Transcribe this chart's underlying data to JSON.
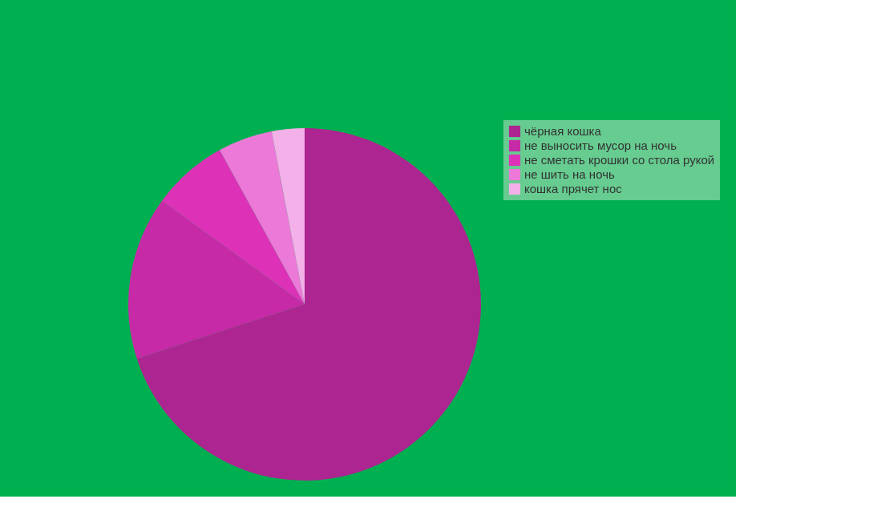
{
  "chart_data": {
    "type": "pie",
    "categories": [
      "чёрная кошка",
      "не выносить мусор на ночь",
      "не сметать крошки со стола рукой",
      "не шить на ночь",
      "кошка прячет нос"
    ],
    "values": [
      70,
      15,
      7,
      5,
      3
    ],
    "colors": [
      "#ad2590",
      "#c62aa6",
      "#dd32b8",
      "#ec79d8",
      "#f4b0e8"
    ],
    "legend": "right"
  }
}
